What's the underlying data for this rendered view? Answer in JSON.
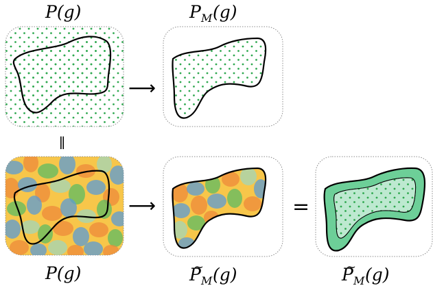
{
  "labels": {
    "p_top": "P(g)",
    "pm_top_main": "P",
    "pm_top_sub": "M",
    "pm_top_arg": "(g)",
    "p_bottom": "P(g)",
    "pm_tilde_main": "P",
    "pm_tilde_sub": "M",
    "pm_tilde_arg": "(g)",
    "pm_tilde2_main": "P",
    "pm_tilde2_sub": "M",
    "pm_tilde2_arg": "(g)",
    "tilde": "~",
    "arrow": "⟶",
    "parallel": "∥",
    "equals": "="
  },
  "colors": {
    "dot_green": "#2ea84f",
    "frame_gray": "#8a8a8a",
    "outline_black": "#000000",
    "band_green": "#6dcf98",
    "blob_blue": "#5b9bd5",
    "blob_orange": "#ed8a3b",
    "blob_yellow": "#f7c64a",
    "blob_green": "#5dbb63",
    "blob_light": "#a6d4b1"
  }
}
